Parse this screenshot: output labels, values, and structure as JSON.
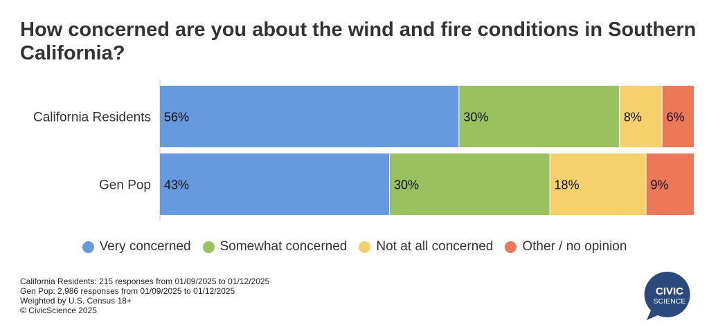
{
  "title": "How concerned are you about the wind and fire conditions in Southern California?",
  "legend": [
    {
      "name": "Very concerned",
      "color": "#6699dd"
    },
    {
      "name": "Somewhat concerned",
      "color": "#99c15d"
    },
    {
      "name": "Not at all concerned",
      "color": "#f6d06b"
    },
    {
      "name": "Other / no opinion",
      "color": "#ec7759"
    }
  ],
  "footnotes": [
    "California Residents: 215 responses from 01/09/2025 to 01/12/2025",
    "Gen Pop: 2,986 responses from 01/09/2025 to 01/12/2025",
    "Weighted by U.S. Census 18+",
    "© CivicScience 2025"
  ],
  "logo": {
    "line1": "CIVIC",
    "line2": "SCIENCE",
    "color": "#2a4a7d"
  },
  "chart_data": {
    "type": "bar",
    "orientation": "horizontal",
    "stacked": true,
    "unit": "%",
    "title": "How concerned are you about the wind and fire conditions in Southern California?",
    "categories": [
      "California Residents",
      "Gen Pop"
    ],
    "series": [
      {
        "name": "Very concerned",
        "values": [
          56,
          43
        ],
        "color": "#6699dd"
      },
      {
        "name": "Somewhat concerned",
        "values": [
          30,
          30
        ],
        "color": "#99c15d"
      },
      {
        "name": "Not at all concerned",
        "values": [
          8,
          18
        ],
        "color": "#f6d06b"
      },
      {
        "name": "Other / no opinion",
        "values": [
          6,
          9
        ],
        "color": "#ec7759"
      }
    ],
    "xlim": [
      0,
      100
    ],
    "grid": false,
    "legend_position": "bottom"
  }
}
